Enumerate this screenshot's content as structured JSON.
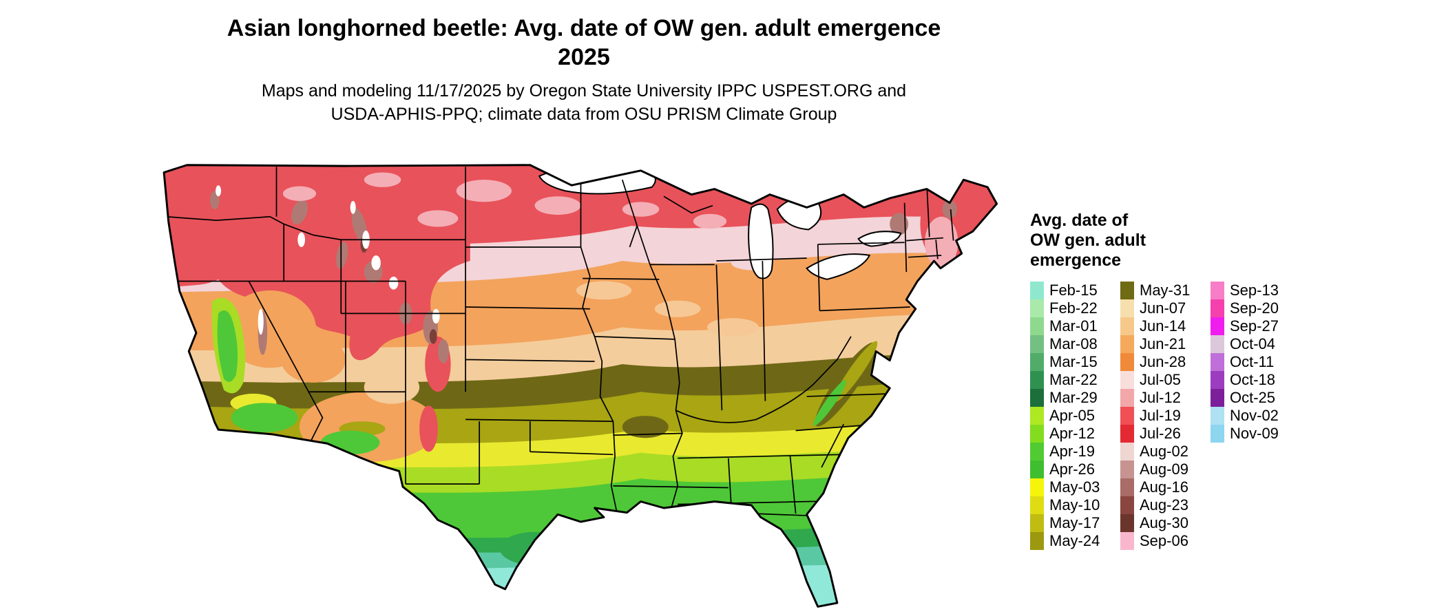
{
  "title": {
    "lines": [
      "Asian longhorned beetle: Avg. date of OW gen. adult emergence",
      "2025"
    ]
  },
  "subtitle": {
    "lines": [
      "Maps and modeling 11/17/2025 by Oregon State University IPPC USPEST.ORG and",
      "USDA-APHIS-PPQ; climate data from OSU PRISM Climate Group"
    ]
  },
  "legend": {
    "title_lines": [
      "Avg. date of",
      "OW gen. adult",
      "emergence"
    ],
    "columns": [
      {
        "entries": [
          {
            "label": "Feb-15",
            "color": "#8FE8CE"
          },
          {
            "label": "Feb-22",
            "color": "#A9E9A9"
          },
          {
            "label": "Mar-01",
            "color": "#8FD98F"
          },
          {
            "label": "Mar-08",
            "color": "#74C083"
          },
          {
            "label": "Mar-15",
            "color": "#51AC69"
          },
          {
            "label": "Mar-22",
            "color": "#2F9150"
          },
          {
            "label": "Mar-29",
            "color": "#1C6E3A"
          },
          {
            "label": "Apr-05",
            "color": "#AEE821"
          },
          {
            "label": "Apr-12",
            "color": "#83DC1E"
          },
          {
            "label": "Apr-19",
            "color": "#50CB32"
          },
          {
            "label": "Apr-26",
            "color": "#3FBF2F"
          },
          {
            "label": "May-03",
            "color": "#F5F50A"
          },
          {
            "label": "May-10",
            "color": "#DFDD12"
          },
          {
            "label": "May-17",
            "color": "#C0BC12"
          },
          {
            "label": "May-24",
            "color": "#9C9910"
          }
        ]
      },
      {
        "entries": [
          {
            "label": "May-31",
            "color": "#6F6A14"
          },
          {
            "label": "Jun-07",
            "color": "#F6DFAD"
          },
          {
            "label": "Jun-14",
            "color": "#F6C98B"
          },
          {
            "label": "Jun-21",
            "color": "#F5A95D"
          },
          {
            "label": "Jun-28",
            "color": "#F08A3B"
          },
          {
            "label": "Jul-05",
            "color": "#F8DFDC"
          },
          {
            "label": "Jul-12",
            "color": "#F2A7A9"
          },
          {
            "label": "Jul-19",
            "color": "#F05055"
          },
          {
            "label": "Jul-26",
            "color": "#E32A33"
          },
          {
            "label": "Aug-02",
            "color": "#EFD6D1"
          },
          {
            "label": "Aug-09",
            "color": "#C69390"
          },
          {
            "label": "Aug-16",
            "color": "#A96C66"
          },
          {
            "label": "Aug-23",
            "color": "#8A453F"
          },
          {
            "label": "Aug-30",
            "color": "#6B352C"
          },
          {
            "label": "Sep-06",
            "color": "#F9B7CE"
          }
        ]
      },
      {
        "entries": [
          {
            "label": "Sep-13",
            "color": "#F77EC6"
          },
          {
            "label": "Sep-20",
            "color": "#F540AE"
          },
          {
            "label": "Sep-27",
            "color": "#EF1EEF"
          },
          {
            "label": "Oct-04",
            "color": "#DCC8DB"
          },
          {
            "label": "Oct-11",
            "color": "#BF6FD9"
          },
          {
            "label": "Oct-18",
            "color": "#9C3CBF"
          },
          {
            "label": "Oct-25",
            "color": "#7B1F9B"
          },
          {
            "label": "Nov-02",
            "color": "#AEE1F2"
          },
          {
            "label": "Nov-09",
            "color": "#8ED5F0"
          }
        ]
      }
    ]
  },
  "map": {
    "region": "Continental United States",
    "colors": {
      "north_red": "#E8525A",
      "pink_mottle": "#F4AEB6",
      "pale_pink": "#F3D4D8",
      "orange": "#F3A35C",
      "pale_orange": "#F6C896",
      "tan": "#F4CD9C",
      "dark_olive": "#6E6816",
      "olive": "#A9A513",
      "yellow": "#E9E930",
      "yellow_green": "#A9DC25",
      "green": "#4EC838",
      "dark_green": "#2FA84E",
      "teal": "#5BC8A4",
      "cyan": "#90E8D8",
      "rosy_brown": "#B07A74",
      "dark_brown": "#7A4038",
      "snow_white": "#FFFFFF",
      "border": "#000000"
    }
  }
}
